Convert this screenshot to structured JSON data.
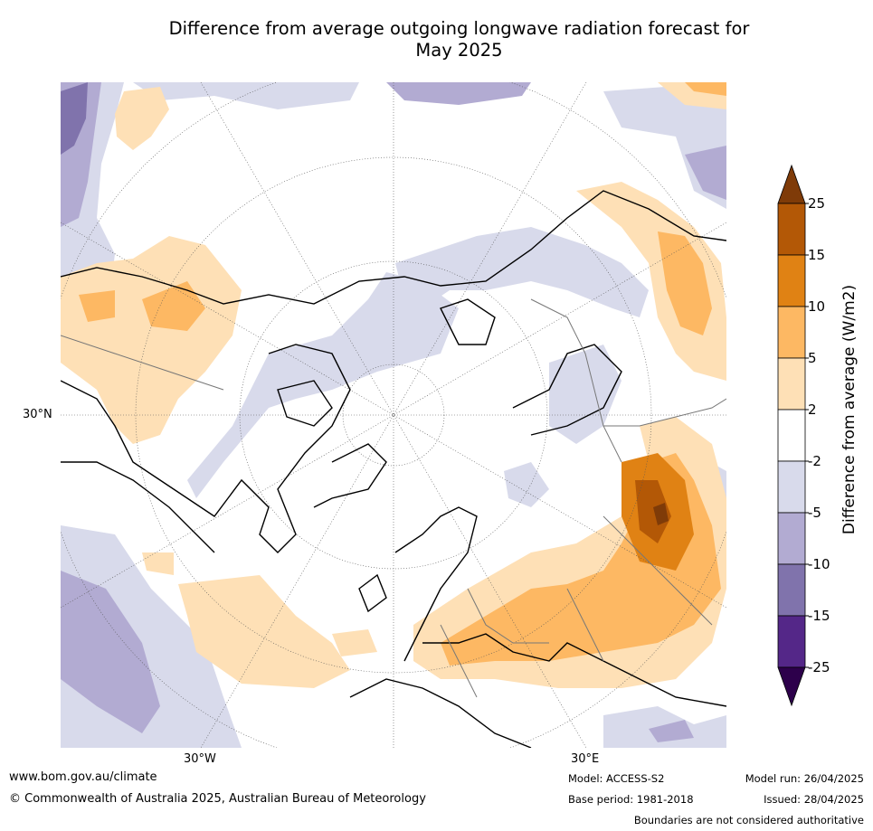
{
  "title_line1": "Difference from average outgoing longwave radiation forecast for",
  "title_line2": "May 2025",
  "map": {
    "projection": "north polar stereographic",
    "lat_label": "30°N",
    "lon_labels": [
      "30°W",
      "30°E"
    ]
  },
  "colorbar": {
    "label": "Difference from average (W/m2)",
    "ticks": [
      "25",
      "15",
      "10",
      "5",
      "2",
      "-2",
      "-5",
      "-10",
      "-15",
      "-25"
    ],
    "colors": {
      "gt25": "#7f3b08",
      "15_25": "#b35806",
      "10_15": "#e08214",
      "5_10": "#fdb863",
      "2_5": "#fee0b6",
      "neutral": "#ffffff",
      "m2_m5": "#d8daeb",
      "m5_m10": "#b2abd2",
      "m10_m15": "#8073ac",
      "m15_m25": "#542788",
      "lt_m25": "#2d004b"
    }
  },
  "footer": {
    "website": "www.bom.gov.au/climate",
    "copyright": "© Commonwealth of Australia 2025, Australian Bureau of Meteorology",
    "model": "Model: ACCESS-S2",
    "base_period": "Base period: 1981-2018",
    "model_run": "Model run: 26/04/2025",
    "issued": "Issued: 28/04/2025",
    "disclaimer": "Boundaries are not considered authoritative"
  }
}
